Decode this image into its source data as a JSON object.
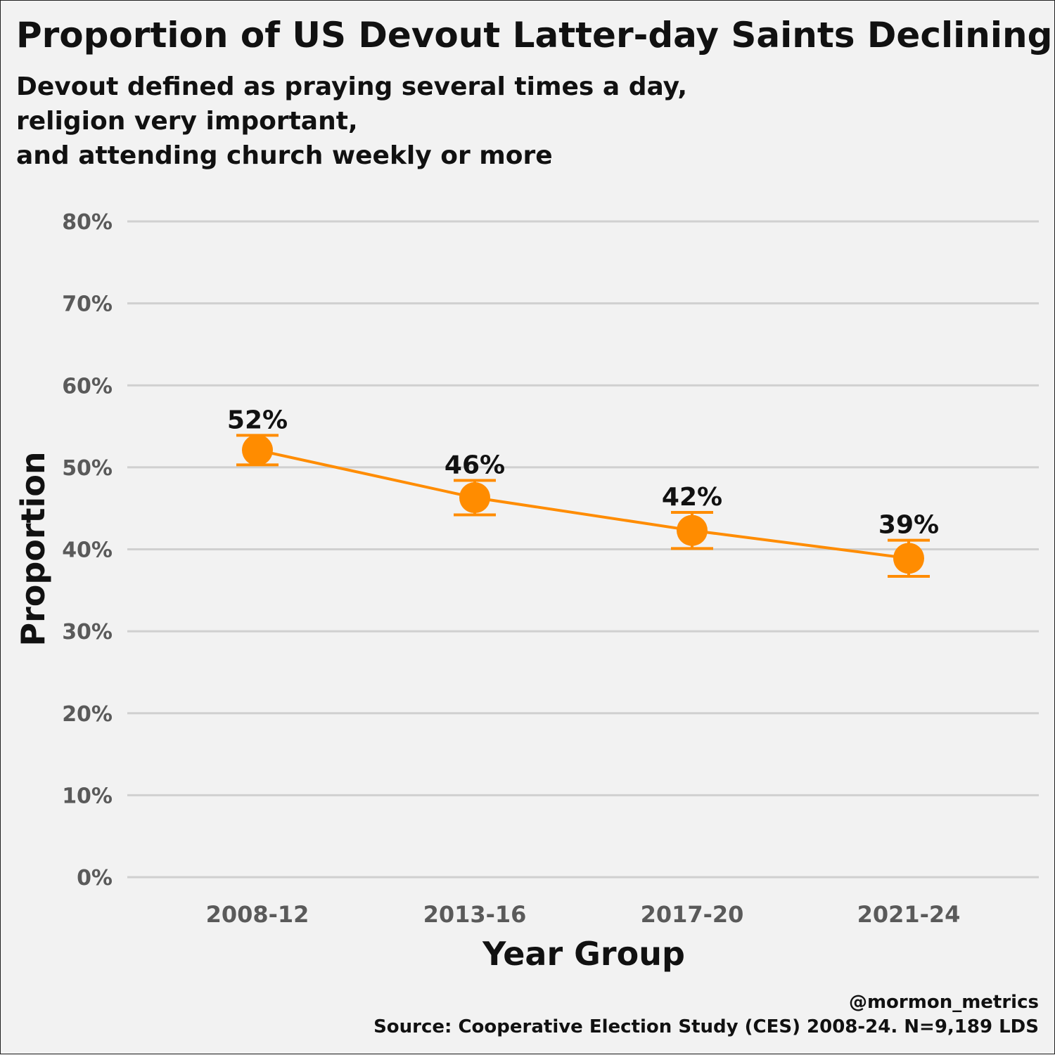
{
  "chart_data": {
    "type": "line",
    "title": "Proportion of US Devout Latter-day Saints Declining",
    "subtitle_lines": [
      "Devout defined as praying several times a day,",
      "religion very important,",
      "and attending church weekly or more"
    ],
    "xlabel": "Year Group",
    "ylabel": "Proportion",
    "categories": [
      "2008-12",
      "2013-16",
      "2017-20",
      "2021-24"
    ],
    "values": [
      52.1,
      46.3,
      42.3,
      38.9
    ],
    "error_low": [
      50.3,
      44.2,
      40.1,
      36.7
    ],
    "error_high": [
      53.9,
      48.4,
      44.5,
      41.1
    ],
    "data_labels": [
      "52%",
      "46%",
      "42%",
      "39%"
    ],
    "ylim": [
      0,
      80
    ],
    "y_ticks": [
      0,
      10,
      20,
      30,
      40,
      50,
      60,
      70,
      80
    ],
    "y_tick_labels": [
      "0%",
      "10%",
      "20%",
      "30%",
      "40%",
      "50%",
      "60%",
      "70%",
      "80%"
    ],
    "grid": true,
    "legend": "none",
    "color": "#ff8c00",
    "credit": "@mormon_metrics",
    "source": "Source: Cooperative Election Study (CES) 2008-24. N=9,189 LDS"
  }
}
